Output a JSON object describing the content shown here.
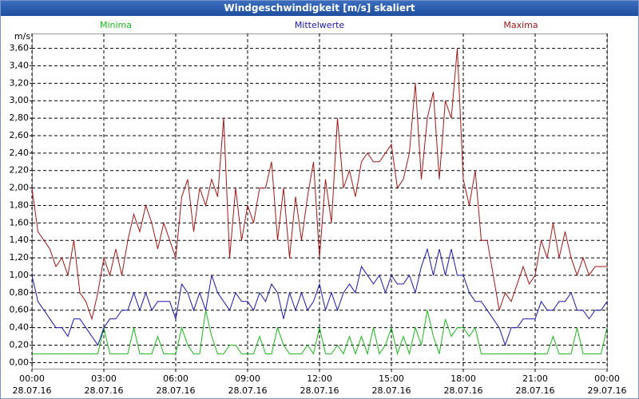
{
  "chart_data": {
    "type": "line",
    "title": "Windgeschwindigkeit [m/s] skaliert",
    "y_unit": "m/s",
    "grid": true,
    "xlim": [
      0,
      24
    ],
    "ylim": [
      -0.07,
      3.77
    ],
    "xticks": [
      {
        "value": 0,
        "label": [
          "00:00",
          "28.07.16"
        ]
      },
      {
        "value": 3,
        "label": [
          "03:00",
          "28.07.16"
        ]
      },
      {
        "value": 6,
        "label": [
          "06:00",
          "28.07.16"
        ]
      },
      {
        "value": 9,
        "label": [
          "09:00",
          "28.07.16"
        ]
      },
      {
        "value": 12,
        "label": [
          "12:00",
          "28.07.16"
        ]
      },
      {
        "value": 15,
        "label": [
          "15:00",
          "28.07.16"
        ]
      },
      {
        "value": 18,
        "label": [
          "18:00",
          "28.07.16"
        ]
      },
      {
        "value": 21,
        "label": [
          "21:00",
          "28.07.16"
        ]
      },
      {
        "value": 24,
        "label": [
          "00:00",
          "29.07.16"
        ]
      }
    ],
    "yticks": [
      {
        "value": 0,
        "label": "0,00"
      },
      {
        "value": 0.2,
        "label": "0,20"
      },
      {
        "value": 0.4,
        "label": "0,40"
      },
      {
        "value": 0.6,
        "label": "0,60"
      },
      {
        "value": 0.8,
        "label": "0,80"
      },
      {
        "value": 1,
        "label": "1,00"
      },
      {
        "value": 1.2,
        "label": "1,20"
      },
      {
        "value": 1.4,
        "label": "1,40"
      },
      {
        "value": 1.6,
        "label": "1,60"
      },
      {
        "value": 1.8,
        "label": "1,80"
      },
      {
        "value": 2,
        "label": "2,00"
      },
      {
        "value": 2.2,
        "label": "2,20"
      },
      {
        "value": 2.4,
        "label": "2,40"
      },
      {
        "value": 2.6,
        "label": "2,60"
      },
      {
        "value": 2.8,
        "label": "2,80"
      },
      {
        "value": 3,
        "label": "3,00"
      },
      {
        "value": 3.2,
        "label": "3,20"
      },
      {
        "value": 3.4,
        "label": "3,40"
      },
      {
        "value": 3.6,
        "label": "3,60"
      }
    ],
    "x": [
      0,
      0.25,
      0.5,
      0.75,
      1,
      1.25,
      1.5,
      1.75,
      2,
      2.25,
      2.5,
      2.75,
      3,
      3.25,
      3.5,
      3.75,
      4,
      4.25,
      4.5,
      4.75,
      5,
      5.25,
      5.5,
      5.75,
      6,
      6.25,
      6.5,
      6.75,
      7,
      7.25,
      7.5,
      7.75,
      8,
      8.25,
      8.5,
      8.75,
      9,
      9.25,
      9.5,
      9.75,
      10,
      10.25,
      10.5,
      10.75,
      11,
      11.25,
      11.5,
      11.75,
      12,
      12.25,
      12.5,
      12.75,
      13,
      13.25,
      13.5,
      13.75,
      14,
      14.25,
      14.5,
      14.75,
      15,
      15.25,
      15.5,
      15.75,
      16,
      16.25,
      16.5,
      16.75,
      17,
      17.25,
      17.5,
      17.75,
      18,
      18.25,
      18.5,
      18.75,
      19,
      19.25,
      19.5,
      19.75,
      20,
      20.25,
      20.5,
      20.75,
      21,
      21.25,
      21.5,
      21.75,
      22,
      22.25,
      22.5,
      22.75,
      23,
      23.25,
      23.5,
      23.75,
      24
    ],
    "series": [
      {
        "name": "Minima",
        "color": "#1fb31f",
        "legend_x": 3.5,
        "values": [
          0.1,
          0.1,
          0.1,
          0.1,
          0.1,
          0.1,
          0.1,
          0.1,
          0.1,
          0.1,
          0.1,
          0.1,
          0.4,
          0.1,
          0.1,
          0.1,
          0.1,
          0.4,
          0.1,
          0.1,
          0.1,
          0.3,
          0.1,
          0.1,
          0.1,
          0.4,
          0.2,
          0.1,
          0.1,
          0.6,
          0.3,
          0.1,
          0.1,
          0.2,
          0.2,
          0.1,
          0.1,
          0.1,
          0.3,
          0.1,
          0.1,
          0.4,
          0.2,
          0.1,
          0.1,
          0.1,
          0.2,
          0.1,
          0.4,
          0.1,
          0.1,
          0.2,
          0.1,
          0.3,
          0.1,
          0.3,
          0.1,
          0.4,
          0.1,
          0.2,
          0.4,
          0.1,
          0.3,
          0.1,
          0.4,
          0.2,
          0.6,
          0.3,
          0.1,
          0.5,
          0.3,
          0.4,
          0.4,
          0.3,
          0.4,
          0.1,
          0.1,
          0.1,
          0.1,
          0.1,
          0.1,
          0.1,
          0.1,
          0.1,
          0.1,
          0.1,
          0.1,
          0.3,
          0.1,
          0.1,
          0.1,
          0.4,
          0.1,
          0.1,
          0.1,
          0.1,
          0.4
        ]
      },
      {
        "name": "Mittelwerte",
        "color": "#1a1aa8",
        "legend_x": 12,
        "values": [
          1.0,
          0.7,
          0.6,
          0.5,
          0.4,
          0.4,
          0.3,
          0.5,
          0.5,
          0.4,
          0.3,
          0.2,
          0.4,
          0.5,
          0.5,
          0.6,
          0.6,
          0.8,
          0.6,
          0.8,
          0.6,
          0.7,
          0.7,
          0.7,
          0.5,
          0.9,
          0.8,
          0.6,
          0.8,
          0.6,
          1.0,
          0.8,
          0.7,
          0.6,
          0.8,
          0.7,
          0.7,
          0.6,
          0.8,
          0.7,
          0.9,
          0.8,
          0.5,
          0.8,
          0.6,
          0.8,
          0.6,
          0.7,
          0.9,
          0.6,
          0.8,
          0.6,
          0.8,
          0.9,
          0.8,
          1.1,
          1.0,
          0.9,
          1.0,
          0.8,
          1.0,
          0.9,
          0.9,
          1.0,
          0.8,
          1.1,
          1.3,
          1.0,
          1.3,
          1.0,
          1.3,
          1.0,
          1.0,
          0.8,
          0.7,
          0.7,
          0.6,
          0.5,
          0.4,
          0.2,
          0.4,
          0.4,
          0.5,
          0.5,
          0.5,
          0.7,
          0.6,
          0.6,
          0.7,
          0.7,
          0.8,
          0.6,
          0.6,
          0.5,
          0.6,
          0.6,
          0.7
        ]
      },
      {
        "name": "Maxima",
        "color": "#a01818",
        "legend_x": 20.4,
        "values": [
          2.0,
          1.5,
          1.4,
          1.3,
          1.1,
          1.2,
          1.0,
          1.4,
          0.8,
          0.7,
          0.5,
          0.8,
          1.2,
          1.0,
          1.3,
          1.0,
          1.4,
          1.7,
          1.5,
          1.8,
          1.6,
          1.3,
          1.6,
          1.4,
          1.2,
          1.9,
          2.1,
          1.5,
          2.0,
          1.8,
          2.1,
          1.9,
          2.8,
          1.2,
          2.0,
          1.4,
          1.8,
          1.6,
          2.0,
          2.0,
          2.3,
          1.4,
          2.0,
          1.2,
          1.9,
          1.4,
          1.9,
          2.3,
          1.2,
          2.1,
          1.6,
          2.8,
          2.0,
          2.2,
          1.9,
          2.3,
          2.4,
          2.3,
          2.3,
          2.4,
          2.5,
          2.0,
          2.1,
          2.4,
          3.2,
          2.1,
          2.8,
          3.1,
          2.1,
          3.0,
          2.8,
          3.6,
          2.1,
          1.8,
          2.2,
          1.4,
          1.4,
          1.0,
          0.6,
          0.8,
          0.7,
          0.9,
          1.1,
          0.9,
          1.0,
          1.4,
          1.2,
          1.6,
          1.2,
          1.5,
          1.2,
          1.0,
          1.2,
          1.0,
          1.1,
          1.1,
          1.1
        ]
      }
    ]
  }
}
